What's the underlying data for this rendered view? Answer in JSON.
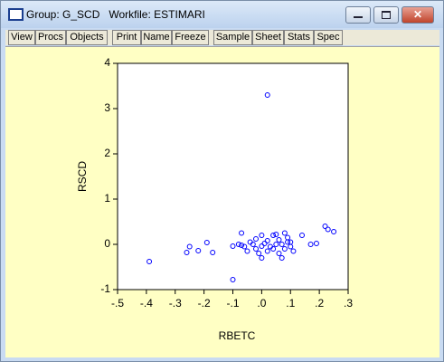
{
  "window": {
    "title": "Group: G_SCD   Workfile: ESTIMARI",
    "toolbar": [
      [
        "View",
        "Procs",
        "Objects"
      ],
      [
        "Print",
        "Name",
        "Freeze"
      ],
      [
        "Sample",
        "Sheet",
        "Stats",
        "Spec"
      ]
    ]
  },
  "chart_data": {
    "type": "scatter",
    "x_label": "RBETC",
    "y_label": "RSCD",
    "color": "#0000ff",
    "xlim": [
      -0.5,
      0.3
    ],
    "ylim": [
      -1,
      4
    ],
    "xticks": [
      {
        "value": -0.5,
        "label": "-.5"
      },
      {
        "value": -0.4,
        "label": "-.4"
      },
      {
        "value": -0.3,
        "label": "-.3"
      },
      {
        "value": -0.2,
        "label": "-.2"
      },
      {
        "value": -0.1,
        "label": "-.1"
      },
      {
        "value": 0,
        "label": ".0"
      },
      {
        "value": 0.1,
        "label": ".1"
      },
      {
        "value": 0.2,
        "label": ".2"
      },
      {
        "value": 0.3,
        "label": ".3"
      }
    ],
    "yticks": [
      -1,
      0,
      1,
      2,
      3,
      4
    ],
    "x": [
      0.02,
      -0.39,
      -0.25,
      -0.26,
      -0.22,
      -0.19,
      -0.17,
      -0.1,
      -0.1,
      -0.08,
      -0.07,
      -0.07,
      -0.06,
      -0.05,
      -0.04,
      -0.03,
      -0.02,
      -0.02,
      -0.01,
      0.0,
      0.0,
      0.0,
      0.01,
      0.02,
      0.02,
      0.03,
      0.04,
      0.04,
      0.05,
      0.05,
      0.06,
      0.06,
      0.07,
      0.07,
      0.08,
      0.08,
      0.09,
      0.09,
      0.1,
      0.1,
      0.11,
      0.14,
      0.17,
      0.19,
      0.22,
      0.23,
      0.25
    ],
    "values": [
      3.3,
      -0.38,
      -0.05,
      -0.18,
      -0.14,
      0.04,
      -0.18,
      -0.78,
      -0.04,
      0.0,
      -0.02,
      0.25,
      -0.05,
      -0.15,
      0.05,
      0.0,
      -0.1,
      0.12,
      -0.2,
      0.2,
      -0.04,
      -0.3,
      0.02,
      -0.15,
      0.08,
      -0.05,
      0.2,
      -0.1,
      0.22,
      0.0,
      -0.2,
      0.1,
      -0.3,
      0.0,
      0.25,
      -0.1,
      0.15,
      0.05,
      -0.05,
      0.05,
      -0.15,
      0.2,
      0.0,
      0.02,
      0.4,
      0.33,
      0.28
    ]
  }
}
